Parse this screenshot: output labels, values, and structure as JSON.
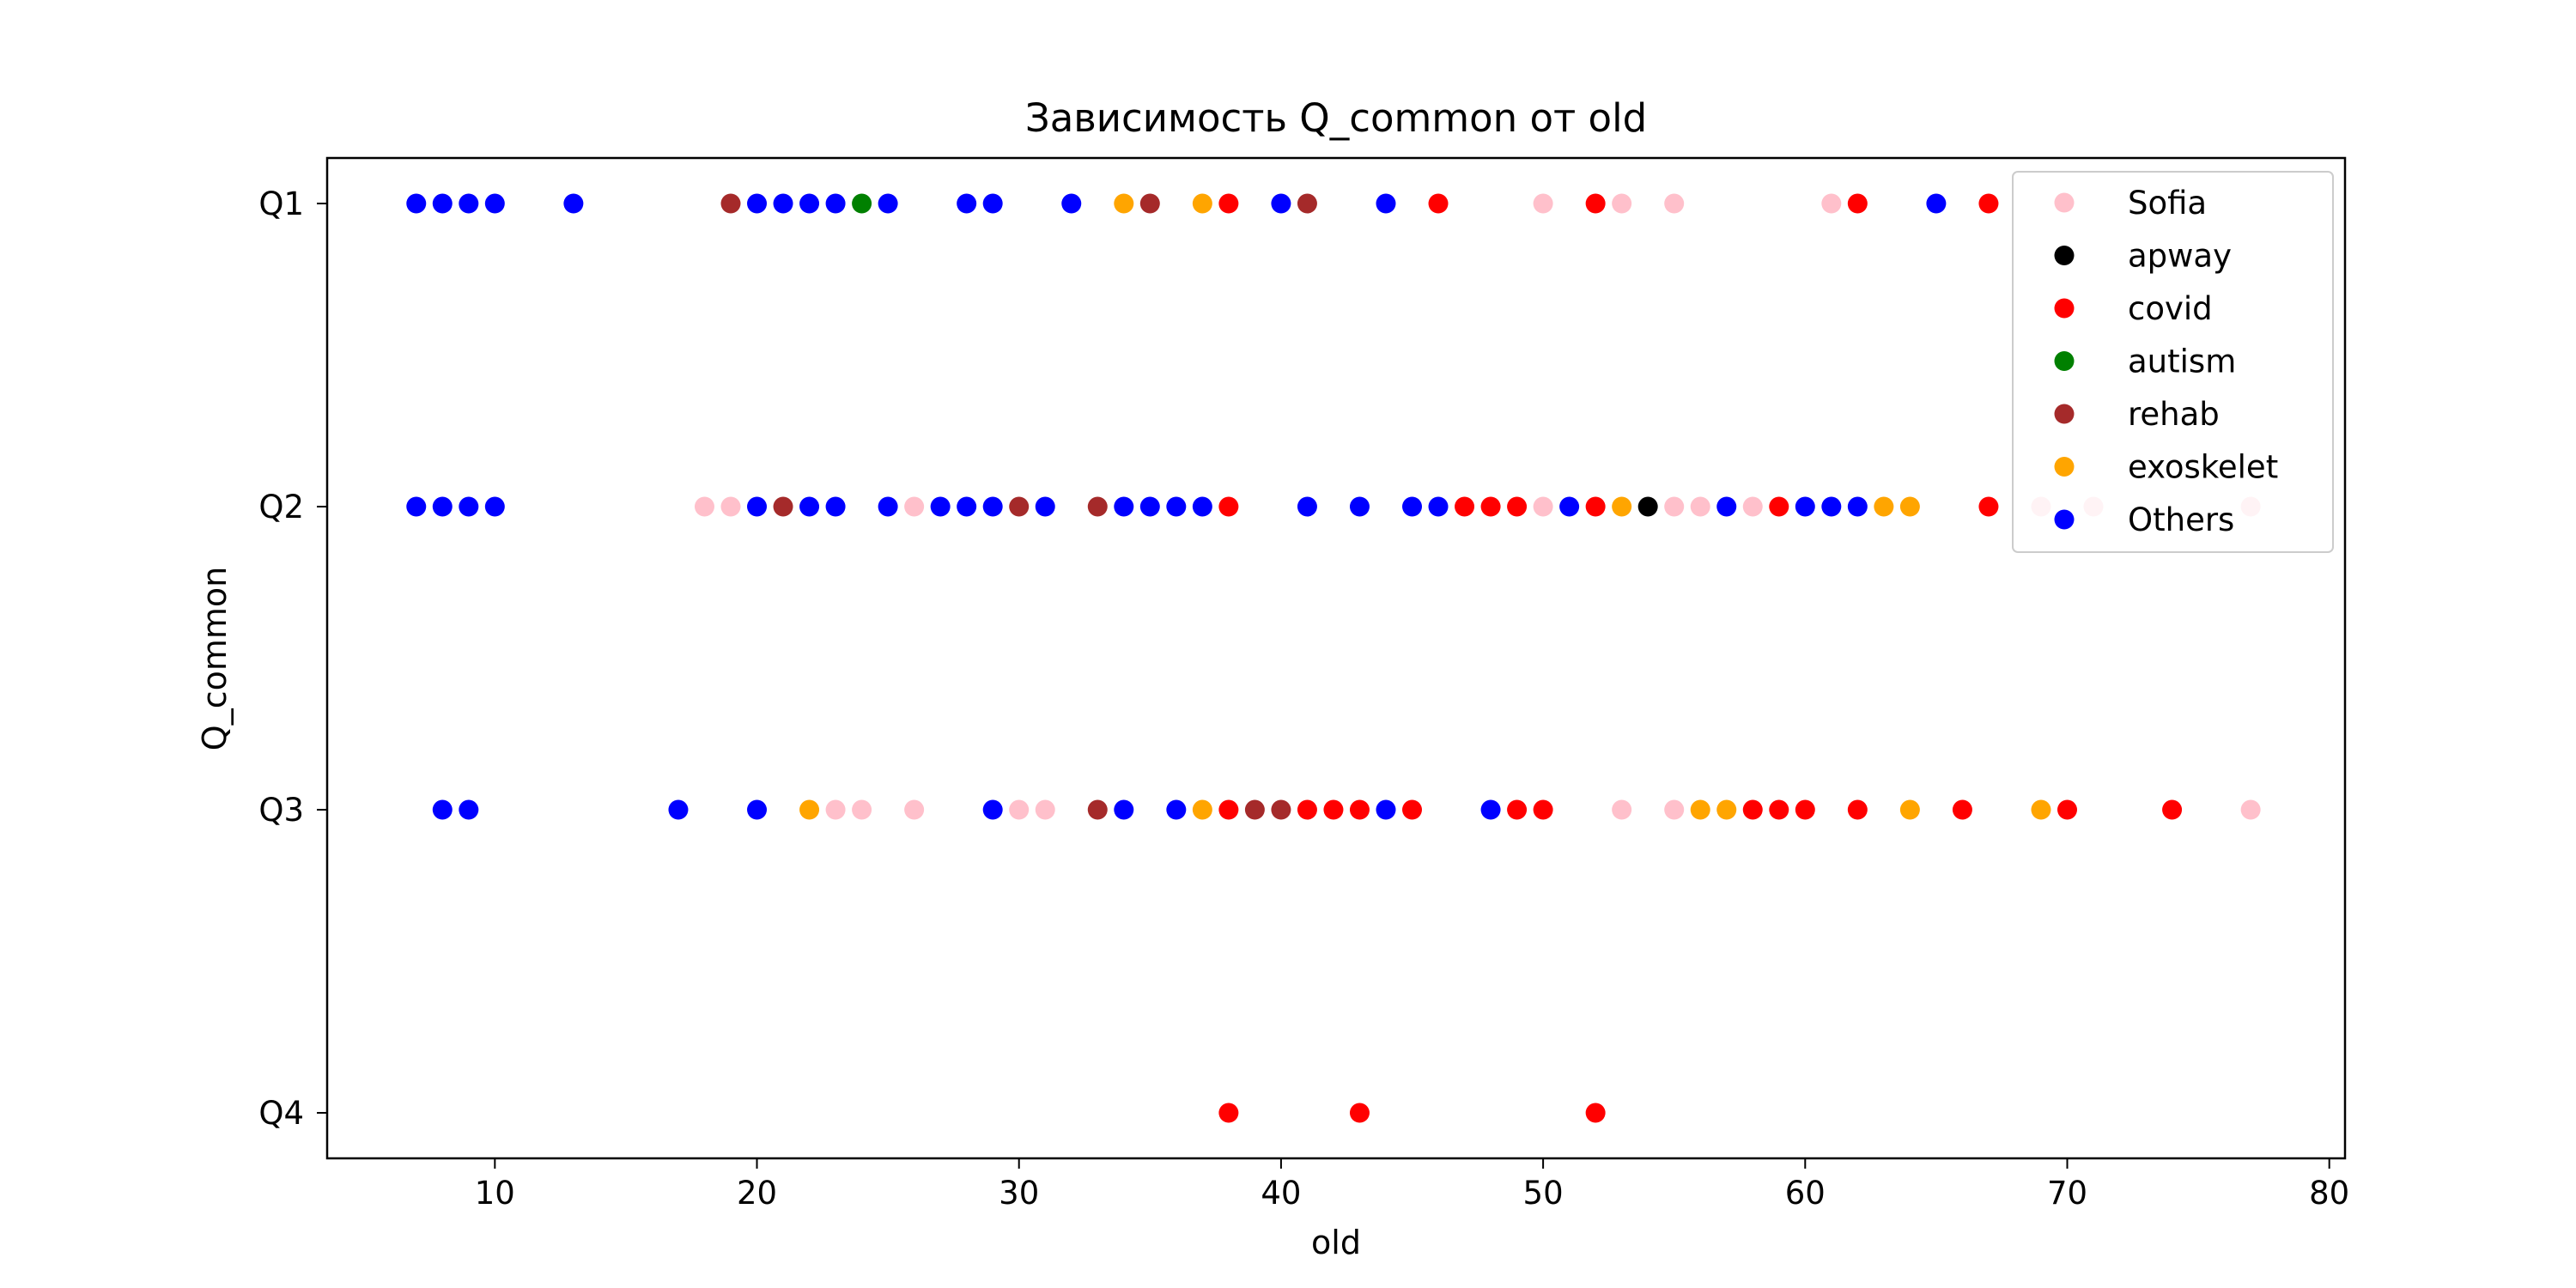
{
  "chart_data": {
    "type": "scatter",
    "title": "Зависимость Q_common от old",
    "xlabel": "old",
    "ylabel": "Q_common",
    "xlim": [
      3.6,
      80.6
    ],
    "xticks": [
      10,
      20,
      30,
      40,
      50,
      60,
      70,
      80
    ],
    "y_categories": [
      "Q1",
      "Q2",
      "Q3",
      "Q4"
    ],
    "grid": false,
    "legend_position": "top-right",
    "colors": {
      "Sofia": "#ffc0cb",
      "apway": "#000000",
      "covid": "#ff0000",
      "autism": "#008000",
      "rehab": "#a52a2a",
      "exoskelet": "#ffa500",
      "Others": "#0000ff"
    },
    "series": [
      {
        "name": "Sofia",
        "points": [
          {
            "x": 50,
            "y": "Q1"
          },
          {
            "x": 53,
            "y": "Q1"
          },
          {
            "x": 55,
            "y": "Q1"
          },
          {
            "x": 61,
            "y": "Q1"
          },
          {
            "x": 18,
            "y": "Q2"
          },
          {
            "x": 19,
            "y": "Q2"
          },
          {
            "x": 26,
            "y": "Q2"
          },
          {
            "x": 50,
            "y": "Q2"
          },
          {
            "x": 55,
            "y": "Q2"
          },
          {
            "x": 56,
            "y": "Q2"
          },
          {
            "x": 58,
            "y": "Q2"
          },
          {
            "x": 69,
            "y": "Q2"
          },
          {
            "x": 71,
            "y": "Q2"
          },
          {
            "x": 77,
            "y": "Q2"
          },
          {
            "x": 23,
            "y": "Q3"
          },
          {
            "x": 24,
            "y": "Q3"
          },
          {
            "x": 26,
            "y": "Q3"
          },
          {
            "x": 30,
            "y": "Q3"
          },
          {
            "x": 31,
            "y": "Q3"
          },
          {
            "x": 53,
            "y": "Q3"
          },
          {
            "x": 55,
            "y": "Q3"
          },
          {
            "x": 77,
            "y": "Q3"
          }
        ]
      },
      {
        "name": "apway",
        "points": [
          {
            "x": 54,
            "y": "Q2"
          }
        ]
      },
      {
        "name": "covid",
        "points": [
          {
            "x": 38,
            "y": "Q1"
          },
          {
            "x": 46,
            "y": "Q1"
          },
          {
            "x": 52,
            "y": "Q1"
          },
          {
            "x": 62,
            "y": "Q1"
          },
          {
            "x": 67,
            "y": "Q1"
          },
          {
            "x": 38,
            "y": "Q2"
          },
          {
            "x": 47,
            "y": "Q2"
          },
          {
            "x": 48,
            "y": "Q2"
          },
          {
            "x": 49,
            "y": "Q2"
          },
          {
            "x": 52,
            "y": "Q2"
          },
          {
            "x": 59,
            "y": "Q2"
          },
          {
            "x": 67,
            "y": "Q2"
          },
          {
            "x": 38,
            "y": "Q3"
          },
          {
            "x": 41,
            "y": "Q3"
          },
          {
            "x": 42,
            "y": "Q3"
          },
          {
            "x": 43,
            "y": "Q3"
          },
          {
            "x": 45,
            "y": "Q3"
          },
          {
            "x": 49,
            "y": "Q3"
          },
          {
            "x": 50,
            "y": "Q3"
          },
          {
            "x": 58,
            "y": "Q3"
          },
          {
            "x": 59,
            "y": "Q3"
          },
          {
            "x": 60,
            "y": "Q3"
          },
          {
            "x": 62,
            "y": "Q3"
          },
          {
            "x": 66,
            "y": "Q3"
          },
          {
            "x": 70,
            "y": "Q3"
          },
          {
            "x": 74,
            "y": "Q3"
          },
          {
            "x": 38,
            "y": "Q4"
          },
          {
            "x": 43,
            "y": "Q4"
          },
          {
            "x": 52,
            "y": "Q4"
          }
        ]
      },
      {
        "name": "autism",
        "points": [
          {
            "x": 24,
            "y": "Q1"
          }
        ]
      },
      {
        "name": "rehab",
        "points": [
          {
            "x": 19,
            "y": "Q1"
          },
          {
            "x": 35,
            "y": "Q1"
          },
          {
            "x": 41,
            "y": "Q1"
          },
          {
            "x": 21,
            "y": "Q2"
          },
          {
            "x": 30,
            "y": "Q2"
          },
          {
            "x": 33,
            "y": "Q2"
          },
          {
            "x": 33,
            "y": "Q3"
          },
          {
            "x": 39,
            "y": "Q3"
          },
          {
            "x": 40,
            "y": "Q3"
          }
        ]
      },
      {
        "name": "exoskelet",
        "points": [
          {
            "x": 34,
            "y": "Q1"
          },
          {
            "x": 37,
            "y": "Q1"
          },
          {
            "x": 53,
            "y": "Q2"
          },
          {
            "x": 63,
            "y": "Q2"
          },
          {
            "x": 64,
            "y": "Q2"
          },
          {
            "x": 22,
            "y": "Q3"
          },
          {
            "x": 37,
            "y": "Q3"
          },
          {
            "x": 56,
            "y": "Q3"
          },
          {
            "x": 57,
            "y": "Q3"
          },
          {
            "x": 64,
            "y": "Q3"
          },
          {
            "x": 69,
            "y": "Q3"
          }
        ]
      },
      {
        "name": "Others",
        "points": [
          {
            "x": 7,
            "y": "Q1"
          },
          {
            "x": 8,
            "y": "Q1"
          },
          {
            "x": 9,
            "y": "Q1"
          },
          {
            "x": 10,
            "y": "Q1"
          },
          {
            "x": 13,
            "y": "Q1"
          },
          {
            "x": 20,
            "y": "Q1"
          },
          {
            "x": 21,
            "y": "Q1"
          },
          {
            "x": 22,
            "y": "Q1"
          },
          {
            "x": 23,
            "y": "Q1"
          },
          {
            "x": 25,
            "y": "Q1"
          },
          {
            "x": 28,
            "y": "Q1"
          },
          {
            "x": 29,
            "y": "Q1"
          },
          {
            "x": 32,
            "y": "Q1"
          },
          {
            "x": 40,
            "y": "Q1"
          },
          {
            "x": 44,
            "y": "Q1"
          },
          {
            "x": 65,
            "y": "Q1"
          },
          {
            "x": 7,
            "y": "Q2"
          },
          {
            "x": 8,
            "y": "Q2"
          },
          {
            "x": 9,
            "y": "Q2"
          },
          {
            "x": 10,
            "y": "Q2"
          },
          {
            "x": 20,
            "y": "Q2"
          },
          {
            "x": 22,
            "y": "Q2"
          },
          {
            "x": 23,
            "y": "Q2"
          },
          {
            "x": 25,
            "y": "Q2"
          },
          {
            "x": 27,
            "y": "Q2"
          },
          {
            "x": 28,
            "y": "Q2"
          },
          {
            "x": 29,
            "y": "Q2"
          },
          {
            "x": 31,
            "y": "Q2"
          },
          {
            "x": 34,
            "y": "Q2"
          },
          {
            "x": 35,
            "y": "Q2"
          },
          {
            "x": 36,
            "y": "Q2"
          },
          {
            "x": 37,
            "y": "Q2"
          },
          {
            "x": 41,
            "y": "Q2"
          },
          {
            "x": 43,
            "y": "Q2"
          },
          {
            "x": 45,
            "y": "Q2"
          },
          {
            "x": 46,
            "y": "Q2"
          },
          {
            "x": 51,
            "y": "Q2"
          },
          {
            "x": 57,
            "y": "Q2"
          },
          {
            "x": 60,
            "y": "Q2"
          },
          {
            "x": 61,
            "y": "Q2"
          },
          {
            "x": 62,
            "y": "Q2"
          },
          {
            "x": 8,
            "y": "Q3"
          },
          {
            "x": 9,
            "y": "Q3"
          },
          {
            "x": 17,
            "y": "Q3"
          },
          {
            "x": 20,
            "y": "Q3"
          },
          {
            "x": 29,
            "y": "Q3"
          },
          {
            "x": 34,
            "y": "Q3"
          },
          {
            "x": 36,
            "y": "Q3"
          },
          {
            "x": 44,
            "y": "Q3"
          },
          {
            "x": 48,
            "y": "Q3"
          }
        ]
      }
    ]
  }
}
